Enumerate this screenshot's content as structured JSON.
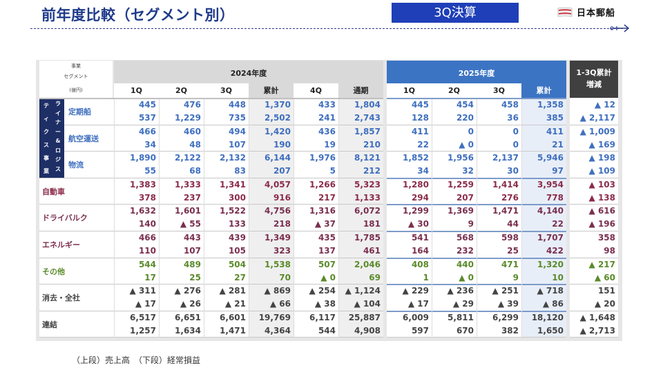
{
  "header": {
    "title": "前年度比較（セグメント別）",
    "badge": "3Q決算",
    "brand": "日本郵船"
  },
  "colors": {
    "title": "#1f3a8a",
    "badge_bg": "#1f3fb8",
    "year2025_header": "#3c74c4",
    "diff_header": "#404040",
    "liner_band": "#1e2f66",
    "liner_text": "#3f6fbf",
    "auto_text": "#8b2c4a",
    "drybulk_text": "#7a2f4f",
    "energy_text": "#7a2f4f",
    "other_text": "#5a8a2a",
    "elim_text": "#444444",
    "consol_text": "#444444"
  },
  "table": {
    "corner": {
      "line1": "事業",
      "line2": "セグメント",
      "unit": "(億円)"
    },
    "group_2024": "2024年度",
    "group_2025": "2025年度",
    "group_diff": "1-3Q累計\n増減",
    "group_diff_line1": "1-3Q累計",
    "group_diff_line2": "増減",
    "columns_2024": [
      "1Q",
      "2Q",
      "3Q",
      "累計",
      "4Q",
      "通期"
    ],
    "columns_2025": [
      "1Q",
      "2Q",
      "3Q",
      "累計"
    ],
    "liner_group_label": "ライナー＆ロジスティクス事業",
    "liner_group_col1": [
      "テ",
      "ィ",
      "ク",
      "ス",
      "事",
      "業"
    ],
    "liner_group_col2": [
      "ラ",
      "イ",
      "ナ",
      "ー",
      "&",
      "ロ",
      "ジ",
      "ス"
    ],
    "rows": [
      {
        "segment": "定期船",
        "color": "#3f6fbf",
        "sales": {
          "y2024": [
            "445",
            "476",
            "448",
            "1,370",
            "433",
            "1,804"
          ],
          "y2025": [
            "445",
            "454",
            "458",
            "1,358"
          ],
          "diff": "▲ 12"
        },
        "profit": {
          "y2024": [
            "537",
            "1,229",
            "735",
            "2,502",
            "241",
            "2,743"
          ],
          "y2025": [
            "128",
            "220",
            "36",
            "385"
          ],
          "diff": "▲ 2,117"
        }
      },
      {
        "segment": "航空運送",
        "color": "#3f6fbf",
        "sales": {
          "y2024": [
            "466",
            "460",
            "494",
            "1,420",
            "436",
            "1,857"
          ],
          "y2025": [
            "411",
            "0",
            "0",
            "411"
          ],
          "diff": "▲ 1,009"
        },
        "profit": {
          "y2024": [
            "34",
            "48",
            "107",
            "190",
            "19",
            "210"
          ],
          "y2025": [
            "22",
            "▲ 0",
            "0",
            "21"
          ],
          "diff": "▲ 169"
        }
      },
      {
        "segment": "物流",
        "color": "#3f6fbf",
        "sales": {
          "y2024": [
            "1,890",
            "2,122",
            "2,132",
            "6,144",
            "1,976",
            "8,121"
          ],
          "y2025": [
            "1,852",
            "1,956",
            "2,137",
            "5,946"
          ],
          "diff": "▲ 198"
        },
        "profit": {
          "y2024": [
            "55",
            "68",
            "83",
            "207",
            "5",
            "212"
          ],
          "y2025": [
            "34",
            "32",
            "30",
            "97"
          ],
          "diff": "▲ 109"
        }
      },
      {
        "segment": "自動車",
        "color": "#8b2c4a",
        "sales": {
          "y2024": [
            "1,383",
            "1,333",
            "1,341",
            "4,057",
            "1,266",
            "5,323"
          ],
          "y2025": [
            "1,280",
            "1,259",
            "1,414",
            "3,954"
          ],
          "diff": "▲ 103"
        },
        "profit": {
          "y2024": [
            "378",
            "237",
            "300",
            "916",
            "217",
            "1,133"
          ],
          "y2025": [
            "294",
            "207",
            "276",
            "778"
          ],
          "diff": "▲ 138"
        }
      },
      {
        "segment": "ドライバルク",
        "color": "#7a2f4f",
        "sales": {
          "y2024": [
            "1,632",
            "1,601",
            "1,522",
            "4,756",
            "1,316",
            "6,072"
          ],
          "y2025": [
            "1,299",
            "1,369",
            "1,471",
            "4,140"
          ],
          "diff": "▲ 616"
        },
        "profit": {
          "y2024": [
            "140",
            "▲ 55",
            "133",
            "218",
            "▲ 37",
            "181"
          ],
          "y2025": [
            "▲ 30",
            "9",
            "44",
            "22"
          ],
          "diff": "▲ 196"
        }
      },
      {
        "segment": "エネルギー",
        "color": "#7a2f4f",
        "sales": {
          "y2024": [
            "466",
            "443",
            "439",
            "1,349",
            "435",
            "1,785"
          ],
          "y2025": [
            "541",
            "568",
            "598",
            "1,707"
          ],
          "diff": "358"
        },
        "profit": {
          "y2024": [
            "110",
            "107",
            "105",
            "323",
            "137",
            "461"
          ],
          "y2025": [
            "164",
            "232",
            "25",
            "422"
          ],
          "diff": "98"
        }
      },
      {
        "segment": "その他",
        "color": "#5a8a2a",
        "sales": {
          "y2024": [
            "544",
            "489",
            "504",
            "1,538",
            "507",
            "2,046"
          ],
          "y2025": [
            "408",
            "440",
            "471",
            "1,320"
          ],
          "diff": "▲ 217"
        },
        "profit": {
          "y2024": [
            "17",
            "25",
            "27",
            "70",
            "▲ 0",
            "69"
          ],
          "y2025": [
            "1",
            "▲ 0",
            "9",
            "10"
          ],
          "diff": "▲ 60"
        }
      },
      {
        "segment": "消去・全社",
        "color": "#444444",
        "sales": {
          "y2024": [
            "▲ 311",
            "▲ 276",
            "▲ 281",
            "▲ 869",
            "▲ 254",
            "▲ 1,124"
          ],
          "y2025": [
            "▲ 229",
            "▲ 236",
            "▲ 251",
            "▲ 718"
          ],
          "diff": "151"
        },
        "profit": {
          "y2024": [
            "▲ 17",
            "▲ 26",
            "▲ 21",
            "▲ 66",
            "▲ 38",
            "▲ 104"
          ],
          "y2025": [
            "▲ 17",
            "▲ 29",
            "▲ 39",
            "▲ 86"
          ],
          "diff": "▲ 20"
        }
      },
      {
        "segment": "連結",
        "color": "#444444",
        "sales": {
          "y2024": [
            "6,517",
            "6,651",
            "6,601",
            "19,769",
            "6,117",
            "25,887"
          ],
          "y2025": [
            "6,009",
            "5,811",
            "6,299",
            "18,120"
          ],
          "diff": "▲ 1,648"
        },
        "profit": {
          "y2024": [
            "1,257",
            "1,634",
            "1,471",
            "4,364",
            "544",
            "4,908"
          ],
          "y2025": [
            "597",
            "670",
            "382",
            "1,650"
          ],
          "diff": "▲ 2,713"
        }
      }
    ]
  },
  "footnote": "（上段）売上高　（下段）経常損益"
}
